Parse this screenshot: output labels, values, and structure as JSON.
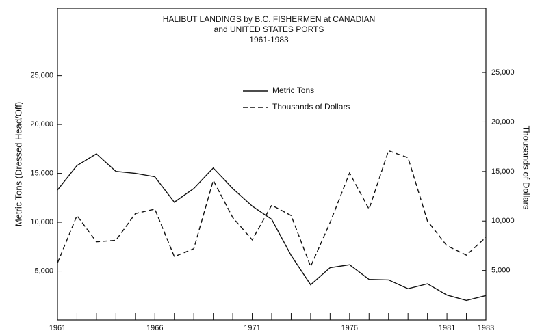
{
  "chart_data": {
    "type": "line",
    "title": [
      "HALIBUT LANDINGS by B.C. FISHERMEN at CANADIAN",
      "and UNITED STATES PORTS",
      "1961-1983"
    ],
    "ylabel": "Metric Tons (Dressed Head/Off)",
    "y2label": "Thousands of Dollars",
    "x": [
      1961,
      1962,
      1963,
      1964,
      1965,
      1966,
      1967,
      1968,
      1969,
      1970,
      1971,
      1972,
      1973,
      1974,
      1975,
      1976,
      1977,
      1978,
      1979,
      1980,
      1981,
      1982,
      1983
    ],
    "xlim": [
      1961,
      1983
    ],
    "xticks": [
      1961,
      1966,
      1971,
      1976,
      1981,
      1983
    ],
    "ylim": [
      0,
      31900
    ],
    "yticks": [
      {
        "value": 5000,
        "label": "5,000"
      },
      {
        "value": 10000,
        "label": "10,000"
      },
      {
        "value": 15000,
        "label": "15,000"
      },
      {
        "value": 20000,
        "label": "20,000"
      },
      {
        "value": 25000,
        "label": "25,000"
      }
    ],
    "y2lim": [
      0,
      31500
    ],
    "y2ticks": [
      {
        "value": 5000,
        "label": "5,000"
      },
      {
        "value": 10000,
        "label": "10,000"
      },
      {
        "value": 15000,
        "label": "15,000"
      },
      {
        "value": 20000,
        "label": "20,000"
      },
      {
        "value": 25000,
        "label": "25,000"
      }
    ],
    "series": [
      {
        "name": "Metric Tons",
        "color": "#111111",
        "dash": "solid",
        "axis": "y",
        "values": [
          13300,
          15800,
          17000,
          15200,
          15000,
          14650,
          12050,
          13450,
          15550,
          13450,
          11650,
          10300,
          6600,
          3600,
          5350,
          5650,
          4150,
          4100,
          3200,
          3700,
          2550,
          2000,
          2500
        ]
      },
      {
        "name": "Thousands of Dollars",
        "color": "#111111",
        "dash": "dashed",
        "axis": "y2",
        "values": [
          5750,
          10550,
          7900,
          8050,
          10750,
          11200,
          6400,
          7200,
          14100,
          10350,
          8100,
          11600,
          10550,
          5400,
          9850,
          14850,
          11200,
          17100,
          16400,
          10000,
          7500,
          6550,
          8350
        ]
      }
    ]
  }
}
